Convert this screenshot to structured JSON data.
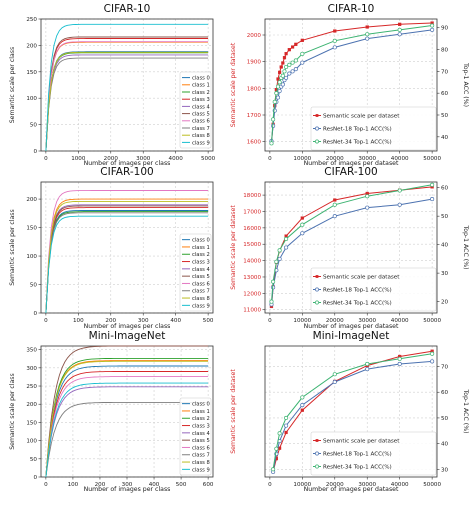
{
  "chart_data": [
    {
      "type": "line",
      "title": "CIFAR-10",
      "xlabel": "Number of images per class",
      "ylabel": "Semantic scale per class",
      "xlim": [
        -150,
        5150
      ],
      "ylim": [
        0,
        250
      ],
      "xticks": [
        0,
        1000,
        2000,
        3000,
        4000,
        5000
      ],
      "yticks": [
        0,
        50,
        100,
        150,
        200,
        250
      ],
      "grid": true,
      "legend": {
        "position": "bottom-right"
      },
      "series": [
        {
          "name": "class 0",
          "color": "#1f77b4",
          "final": 188,
          "k": 0.006
        },
        {
          "name": "class 1",
          "color": "#ff7f0e",
          "final": 206,
          "k": 0.006
        },
        {
          "name": "class 2",
          "color": "#2ca02c",
          "final": 186,
          "k": 0.006
        },
        {
          "name": "class 3",
          "color": "#d62728",
          "final": 213,
          "k": 0.006
        },
        {
          "name": "class 4",
          "color": "#9467bd",
          "final": 182,
          "k": 0.006
        },
        {
          "name": "class 5",
          "color": "#8c564b",
          "final": 216,
          "k": 0.006
        },
        {
          "name": "class 6",
          "color": "#e377c2",
          "final": 207,
          "k": 0.006
        },
        {
          "name": "class 7",
          "color": "#7f7f7f",
          "final": 176,
          "k": 0.006
        },
        {
          "name": "class 8",
          "color": "#bcbd22",
          "final": 187,
          "k": 0.006
        },
        {
          "name": "class 9",
          "color": "#17becf",
          "final": 240,
          "k": 0.006
        }
      ]
    },
    {
      "type": "line",
      "title": "CIFAR-10",
      "xlabel": "Number of images per dataset",
      "ylabel": "Semantic scale per dataset",
      "ylabel_right": "Top-1 ACC (%)",
      "xlim": [
        -1500,
        51500
      ],
      "ylim": [
        1565,
        2060
      ],
      "ylim_right": [
        33.5,
        94
      ],
      "xticks": [
        0,
        10000,
        20000,
        30000,
        40000,
        50000
      ],
      "yticks": [
        1600,
        1700,
        1800,
        1900,
        2000
      ],
      "yticks_right": [
        40,
        50,
        60,
        70,
        80,
        90
      ],
      "grid": true,
      "legend": {
        "position": "bottom-right"
      },
      "x": [
        500,
        1000,
        1500,
        2000,
        2500,
        3000,
        3500,
        4000,
        4500,
        5000,
        6000,
        7000,
        8000,
        10000,
        20000,
        30000,
        40000,
        50000
      ],
      "series": [
        {
          "name": "Semantic scale per dataset",
          "color": "#d62728",
          "axis": "left",
          "marker": "square",
          "values": [
            1595,
            1665,
            1735,
            1795,
            1835,
            1860,
            1880,
            1895,
            1915,
            1930,
            1945,
            1955,
            1965,
            1980,
            2015,
            2030,
            2040,
            2045
          ]
        },
        {
          "name": "ResNet-18 Top-1 ACC(%)",
          "color": "#4c72b0",
          "axis": "right",
          "marker": "circle",
          "values": [
            38,
            45,
            52,
            56,
            58,
            61,
            63,
            64,
            66,
            67,
            69,
            70,
            71,
            74,
            81,
            85,
            87,
            89
          ]
        },
        {
          "name": "ResNet-34 Top-1 ACC(%)",
          "color": "#3cb371",
          "axis": "right",
          "marker": "circle",
          "values": [
            37,
            48,
            56,
            60,
            63,
            65,
            67,
            68,
            70,
            72,
            73,
            74,
            75,
            78,
            84,
            87,
            89,
            91
          ]
        }
      ]
    },
    {
      "type": "line",
      "title": "CIFAR-100",
      "xlabel": "Number of images per class",
      "ylabel": "Semantic scale per class",
      "xlim": [
        -15,
        515
      ],
      "ylim": [
        0,
        230
      ],
      "xticks": [
        0,
        100,
        200,
        300,
        400,
        500
      ],
      "yticks": [
        0,
        50,
        100,
        150,
        200
      ],
      "grid": true,
      "legend": {
        "position": "bottom-right"
      },
      "series": [
        {
          "name": "class 0",
          "color": "#1f77b4",
          "final": 180,
          "k": 0.006
        },
        {
          "name": "class 1",
          "color": "#ff7f0e",
          "final": 200,
          "k": 0.006
        },
        {
          "name": "class 2",
          "color": "#2ca02c",
          "final": 178,
          "k": 0.006
        },
        {
          "name": "class 3",
          "color": "#d62728",
          "final": 185,
          "k": 0.006
        },
        {
          "name": "class 4",
          "color": "#9467bd",
          "final": 190,
          "k": 0.006
        },
        {
          "name": "class 5",
          "color": "#8c564b",
          "final": 188,
          "k": 0.006
        },
        {
          "name": "class 6",
          "color": "#e377c2",
          "final": 215,
          "k": 0.006
        },
        {
          "name": "class 7",
          "color": "#7f7f7f",
          "final": 176,
          "k": 0.006
        },
        {
          "name": "class 8",
          "color": "#bcbd22",
          "final": 196,
          "k": 0.006
        },
        {
          "name": "class 9",
          "color": "#17becf",
          "final": 170,
          "k": 0.006
        }
      ]
    },
    {
      "type": "line",
      "title": "CIFAR-100",
      "xlabel": "Number of images per dataset",
      "ylabel": "Semantic scale per dataset",
      "ylabel_right": "Top-1 ACC (%)",
      "xlim": [
        -1500,
        51500
      ],
      "ylim": [
        10800,
        18800
      ],
      "ylim_right": [
        16,
        62
      ],
      "xticks": [
        0,
        10000,
        20000,
        30000,
        40000,
        50000
      ],
      "yticks": [
        11000,
        12000,
        13000,
        14000,
        15000,
        16000,
        17000,
        18000
      ],
      "yticks_right": [
        20,
        30,
        40,
        50,
        60
      ],
      "grid": true,
      "legend": {
        "position": "bottom-right"
      },
      "x": [
        500,
        1000,
        2000,
        3000,
        5000,
        10000,
        20000,
        30000,
        40000,
        50000
      ],
      "series": [
        {
          "name": "Semantic scale per dataset",
          "color": "#d62728",
          "axis": "left",
          "marker": "square",
          "values": [
            11200,
            12400,
            13900,
            14600,
            15500,
            16600,
            17700,
            18100,
            18300,
            18500
          ]
        },
        {
          "name": "ResNet-18 Top-1 ACC(%)",
          "color": "#4c72b0",
          "axis": "right",
          "marker": "circle",
          "values": [
            19,
            25,
            31,
            35,
            39,
            44,
            50,
            53,
            54,
            56
          ]
        },
        {
          "name": "ResNet-34 Top-1 ACC(%)",
          "color": "#3cb371",
          "axis": "right",
          "marker": "circle",
          "values": [
            20,
            27,
            34,
            38,
            42,
            47,
            54,
            57,
            59,
            61
          ]
        }
      ]
    },
    {
      "type": "line",
      "title": "Mini-ImageNet",
      "xlabel": "Number of images per class",
      "ylabel": "Semantic scale per class",
      "xlim": [
        -18,
        618
      ],
      "ylim": [
        0,
        360
      ],
      "xticks": [
        0,
        100,
        200,
        300,
        400,
        500,
        600
      ],
      "yticks": [
        0,
        50,
        100,
        150,
        200,
        250,
        300,
        350
      ],
      "grid": true,
      "legend": {
        "position": "bottom-right"
      },
      "series": [
        {
          "name": "class 0",
          "color": "#1f77b4",
          "final": 305,
          "k": 0.003
        },
        {
          "name": "class 1",
          "color": "#ff7f0e",
          "final": 320,
          "k": 0.003
        },
        {
          "name": "class 2",
          "color": "#2ca02c",
          "final": 326,
          "k": 0.003
        },
        {
          "name": "class 3",
          "color": "#d62728",
          "final": 290,
          "k": 0.003
        },
        {
          "name": "class 4",
          "color": "#9467bd",
          "final": 248,
          "k": 0.003
        },
        {
          "name": "class 5",
          "color": "#8c564b",
          "final": 360,
          "k": 0.003
        },
        {
          "name": "class 6",
          "color": "#e377c2",
          "final": 276,
          "k": 0.003
        },
        {
          "name": "class 7",
          "color": "#7f7f7f",
          "final": 205,
          "k": 0.003
        },
        {
          "name": "class 8",
          "color": "#bcbd22",
          "final": 318,
          "k": 0.003
        },
        {
          "name": "class 9",
          "color": "#17becf",
          "final": 258,
          "k": 0.003
        }
      ]
    },
    {
      "type": "line",
      "title": "Mini-ImageNet",
      "xlabel": "Number of images per dataset",
      "ylabel": "Semantic scale per dataset",
      "ylabel_right": "Top-1 ACC (%)",
      "xlim": [
        -1500,
        51500
      ],
      "ylim": [
        0,
        100
      ],
      "ylim_right": [
        27,
        78
      ],
      "xticks": [
        0,
        10000,
        20000,
        30000,
        40000,
        50000
      ],
      "yticks": [],
      "yticks_right": [
        30,
        40,
        50,
        60,
        70
      ],
      "grid": true,
      "legend": {
        "position": "bottom-right"
      },
      "x": [
        1000,
        2000,
        3000,
        5000,
        10000,
        20000,
        30000,
        40000,
        50000
      ],
      "series": [
        {
          "name": "Semantic scale per dataset",
          "color": "#d62728",
          "axis": "left",
          "marker": "square",
          "values": [
            4,
            14,
            22,
            34,
            51,
            73,
            85,
            92,
            96
          ]
        },
        {
          "name": "ResNet-18 Top-1 ACC(%)",
          "color": "#4c72b0",
          "axis": "right",
          "marker": "circle",
          "values": [
            29,
            36,
            41,
            47,
            55,
            64,
            69,
            71,
            72
          ]
        },
        {
          "name": "ResNet-34 Top-1 ACC(%)",
          "color": "#3cb371",
          "axis": "right",
          "marker": "circle",
          "values": [
            30,
            38,
            44,
            50,
            58,
            67,
            71,
            73,
            75
          ]
        }
      ]
    }
  ]
}
